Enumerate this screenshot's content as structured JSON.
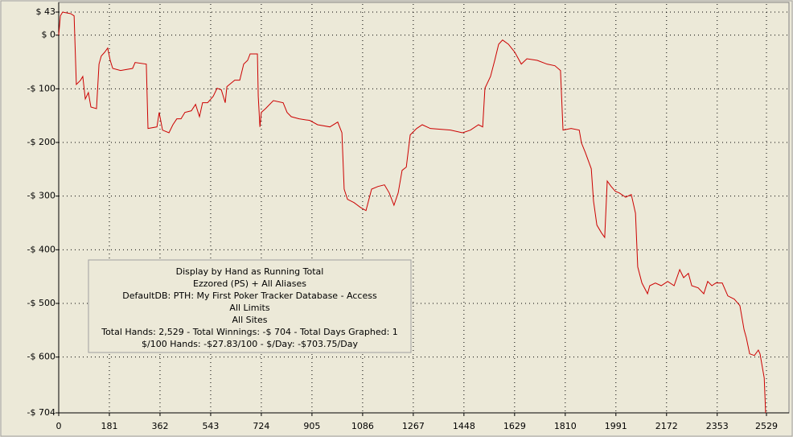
{
  "chart_data": {
    "type": "line",
    "annotations": [
      "Display by Hand as Running Total",
      "Ezzored (PS) + All Aliases",
      "DefaultDB: PTH: My First Poker Tracker Database - Access",
      "All Limits",
      "All Sites",
      "Total Hands: 2,529 - Total Winnings: -$ 704 - Total Days Graphed: 1",
      "$/100 Hands: -$27.83/100 - $/Day: -$703.75/Day"
    ],
    "x": [
      0,
      6,
      14,
      43,
      55,
      63,
      78,
      86,
      95,
      106,
      115,
      135,
      144,
      152,
      164,
      175,
      184,
      193,
      221,
      264,
      273,
      313,
      319,
      351,
      359,
      371,
      394,
      408,
      422,
      437,
      451,
      474,
      489,
      503,
      514,
      532,
      552,
      566,
      581,
      595,
      601,
      629,
      647,
      661,
      675,
      684,
      710,
      713,
      719,
      724,
      739,
      767,
      802,
      816,
      831,
      859,
      897,
      925,
      969,
      997,
      1012,
      1020,
      1032,
      1055,
      1078,
      1098,
      1118,
      1141,
      1164,
      1181,
      1198,
      1213,
      1227,
      1242,
      1256,
      1279,
      1299,
      1328,
      1400,
      1443,
      1471,
      1500,
      1515,
      1523,
      1543,
      1558,
      1572,
      1586,
      1607,
      1630,
      1653,
      1673,
      1710,
      1745,
      1773,
      1793,
      1802,
      1831,
      1860,
      1868,
      1882,
      1903,
      1911,
      1923,
      1940,
      1951,
      1960,
      1974,
      1989,
      2003,
      2026,
      2046,
      2061,
      2069,
      2084,
      2104,
      2112,
      2132,
      2153,
      2176,
      2199,
      2219,
      2233,
      2250,
      2262,
      2285,
      2305,
      2319,
      2334,
      2348,
      2371,
      2391,
      2414,
      2434,
      2449,
      2457,
      2469,
      2486,
      2500,
      2506,
      2521,
      2526
    ],
    "series": [
      {
        "color": "#cc0000",
        "values": [
          0,
          36,
          43,
          40,
          36,
          -92,
          -84,
          -77,
          -119,
          -107,
          -134,
          -137,
          -54,
          -39,
          -32,
          -24,
          -47,
          -62,
          -66,
          -62,
          -51,
          -54,
          -174,
          -171,
          -144,
          -177,
          -182,
          -167,
          -156,
          -156,
          -144,
          -141,
          -129,
          -152,
          -126,
          -126,
          -114,
          -99,
          -102,
          -126,
          -96,
          -84,
          -84,
          -54,
          -47,
          -35,
          -35,
          -114,
          -171,
          -144,
          -137,
          -122,
          -126,
          -144,
          -152,
          -156,
          -159,
          -167,
          -171,
          -162,
          -182,
          -287,
          -306,
          -312,
          -321,
          -327,
          -287,
          -282,
          -279,
          -294,
          -317,
          -294,
          -252,
          -246,
          -186,
          -174,
          -167,
          -174,
          -177,
          -182,
          -177,
          -167,
          -171,
          -99,
          -77,
          -47,
          -17,
          -9,
          -17,
          -32,
          -54,
          -44,
          -47,
          -54,
          -57,
          -66,
          -177,
          -174,
          -177,
          -201,
          -219,
          -249,
          -309,
          -354,
          -369,
          -377,
          -272,
          -282,
          -291,
          -294,
          -302,
          -297,
          -332,
          -432,
          -462,
          -482,
          -467,
          -462,
          -467,
          -459,
          -467,
          -437,
          -452,
          -444,
          -467,
          -471,
          -482,
          -459,
          -467,
          -462,
          -462,
          -486,
          -492,
          -504,
          -549,
          -564,
          -594,
          -597,
          -587,
          -594,
          -639,
          -704
        ]
      }
    ],
    "xlim": [
      0,
      2529
    ],
    "ylim": [
      -704,
      43
    ],
    "xticks": [
      0,
      181,
      362,
      543,
      724,
      905,
      1086,
      1267,
      1448,
      1629,
      1810,
      1991,
      2172,
      2353,
      2529
    ],
    "yticks": [
      {
        "value": 43,
        "label": "$ 43"
      },
      {
        "value": 0,
        "label": "$ 0"
      },
      {
        "value": -100,
        "label": "-$ 100"
      },
      {
        "value": -200,
        "label": "-$ 200"
      },
      {
        "value": -300,
        "label": "-$ 300"
      },
      {
        "value": -400,
        "label": "-$ 400"
      },
      {
        "value": -500,
        "label": "-$ 500"
      },
      {
        "value": -600,
        "label": "-$ 600"
      },
      {
        "value": -704,
        "label": "-$ 704"
      }
    ],
    "grid": true
  }
}
